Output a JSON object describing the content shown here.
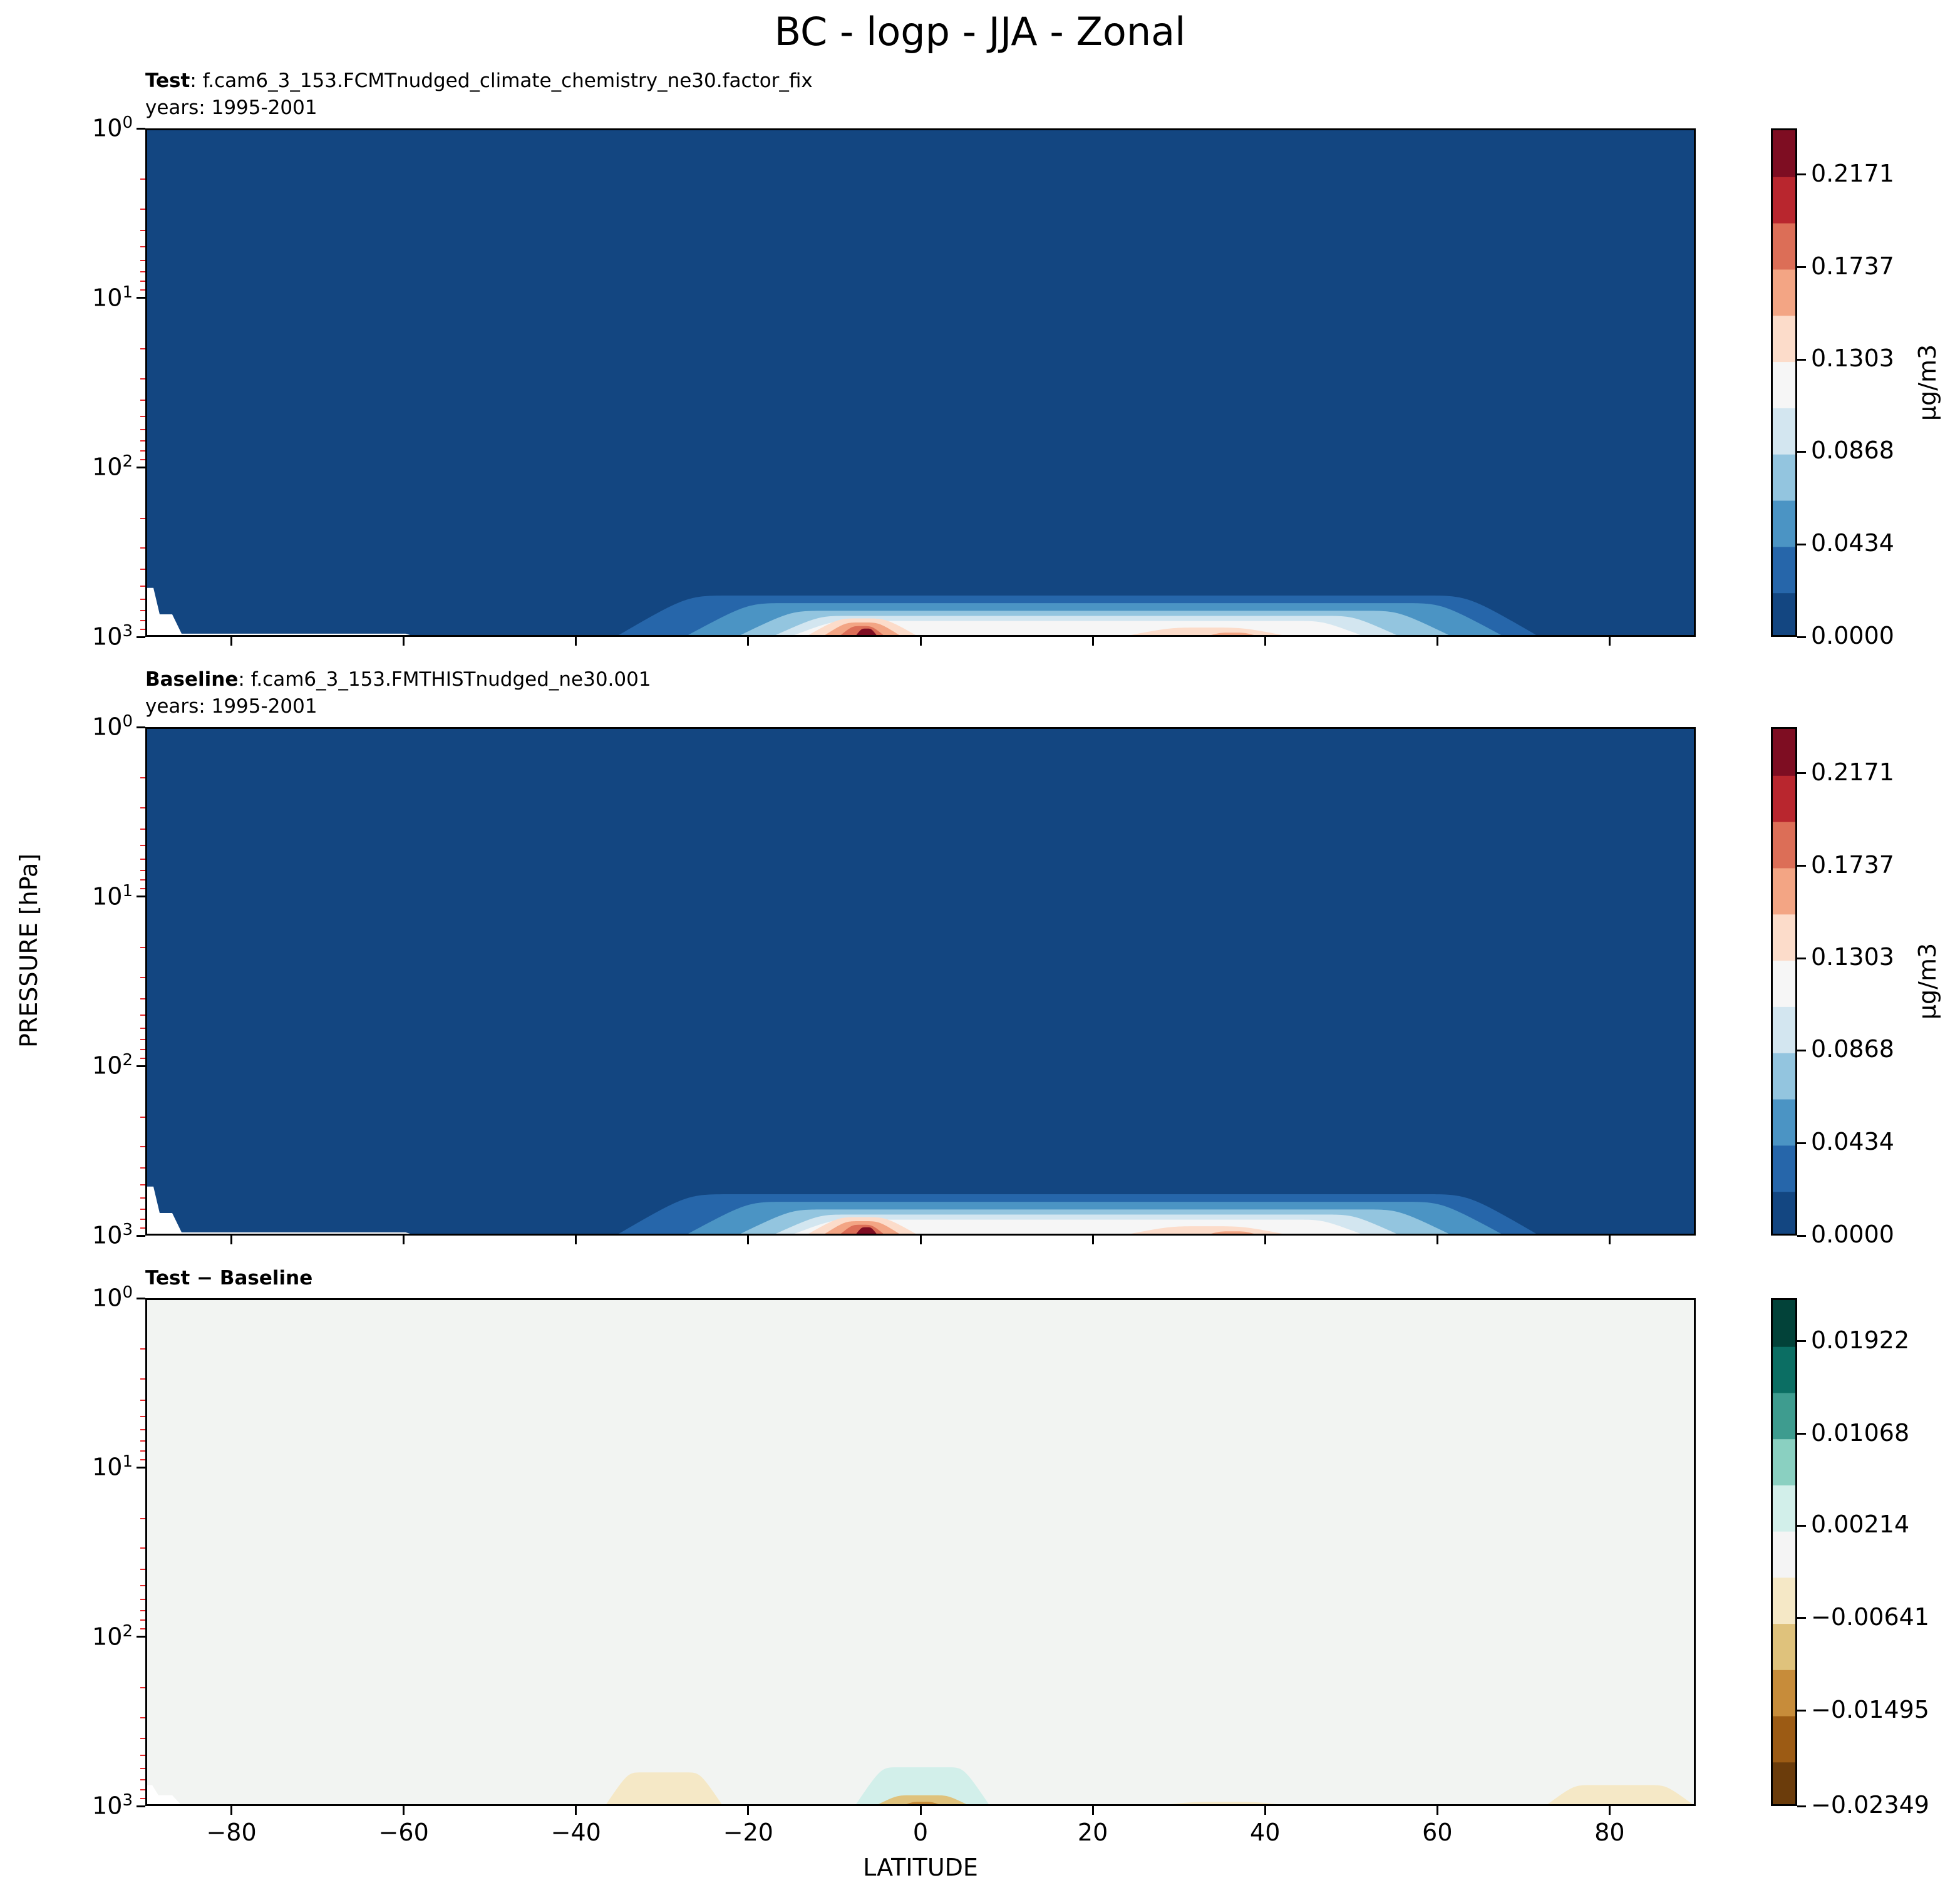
{
  "title": "BC - logp - JJA - Zonal",
  "ylabel": "PRESSURE [hPa]",
  "xlabel": "LATITUDE",
  "panels": [
    {
      "label_bold": "Test",
      "label_text": ": f.cam6_3_153.FCMTnudged_climate_chemistry_ne30.factor_fix",
      "years": "years: 1995-2001",
      "colorbar_label": "μg/m3",
      "colorbar_ticks": [
        "0.2171",
        "0.1737",
        "0.1303",
        "0.0868",
        "0.0434",
        "0.0000"
      ]
    },
    {
      "label_bold": "Baseline",
      "label_text": ": f.cam6_3_153.FMTHISTnudged_ne30.001",
      "years": "years: 1995-2001",
      "colorbar_label": "μg/m3",
      "colorbar_ticks": [
        "0.2171",
        "0.1737",
        "0.1303",
        "0.0868",
        "0.0434",
        "0.0000"
      ]
    },
    {
      "label_bold": "Test − Baseline",
      "label_text": "",
      "years": "",
      "colorbar_label": "",
      "colorbar_ticks": [
        "0.01922",
        "0.01068",
        "0.00214",
        "−0.00641",
        "−0.01495",
        "−0.02349"
      ]
    }
  ],
  "y_ticks": [
    {
      "base": "10",
      "exp": "0"
    },
    {
      "base": "10",
      "exp": "1"
    },
    {
      "base": "10",
      "exp": "2"
    },
    {
      "base": "10",
      "exp": "3"
    }
  ],
  "x_ticks": [
    "−80",
    "−60",
    "−40",
    "−20",
    "0",
    "20",
    "40",
    "60",
    "80"
  ],
  "colors": {
    "abs_colormap": [
      "#134681",
      "#2666aa",
      "#4b94c4",
      "#93c5df",
      "#d3e6f0",
      "#f6f6f6",
      "#fcdcca",
      "#f3a584",
      "#dc6e57",
      "#b9262e",
      "#7e0d22"
    ],
    "diff_colormap": [
      "#6b3c0b",
      "#9c5b14",
      "#c78c3a",
      "#dfc27c",
      "#f5e8c6",
      "#f4f4f4",
      "#d2efea",
      "#8ad0c1",
      "#3e9c8f",
      "#0b6e63",
      "#024239"
    ],
    "diff_background": "#f2f4f2",
    "minor_tick_color": "#e8262a"
  },
  "chart_data": [
    {
      "type": "contourf",
      "x_range": [
        -90,
        90
      ],
      "y_scale": "log",
      "y_range_hPa": [
        1000,
        1
      ],
      "colorbar_levels": [
        0.0,
        0.0434,
        0.0868,
        0.1303,
        0.1737,
        0.2171
      ],
      "max_value_near": {
        "lat": -5,
        "hPa": 950
      }
    },
    {
      "type": "contourf",
      "x_range": [
        -90,
        90
      ],
      "y_scale": "log",
      "y_range_hPa": [
        1000,
        1
      ],
      "colorbar_levels": [
        0.0,
        0.0434,
        0.0868,
        0.1303,
        0.1737,
        0.2171
      ],
      "max_value_near": {
        "lat": -5,
        "hPa": 950
      }
    },
    {
      "type": "contourf",
      "x_range": [
        -90,
        90
      ],
      "y_scale": "log",
      "y_range_hPa": [
        1000,
        1
      ],
      "colorbar_levels": [
        -0.02349,
        -0.01495,
        -0.00641,
        0.00214,
        0.01068,
        0.01922
      ]
    }
  ]
}
